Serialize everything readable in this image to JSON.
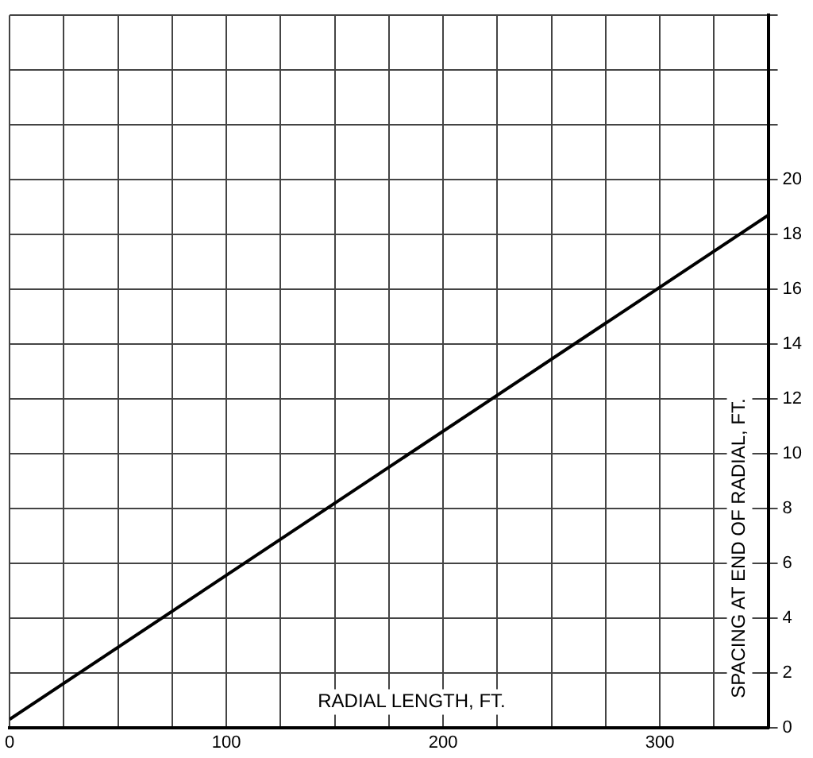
{
  "chart_data": {
    "type": "line",
    "xlabel": "RADIAL LENGTH, FT.",
    "ylabel": "SPACING AT END OF RADIAL, FT.",
    "x": [
      0,
      350
    ],
    "series": [
      {
        "color": "#000000",
        "values": [
          0.3,
          18.7
        ]
      }
    ],
    "xlim": [
      0,
      350
    ],
    "xticks": [
      0,
      {
        "value": 25,
        "label": null
      },
      {
        "value": 50,
        "label": null
      },
      {
        "value": 75,
        "label": null
      },
      100,
      {
        "value": 125,
        "label": null
      },
      {
        "value": 150,
        "label": null
      },
      {
        "value": 175,
        "label": null
      },
      200,
      {
        "value": 225,
        "label": null
      },
      {
        "value": 250,
        "label": null
      },
      {
        "value": 275,
        "label": null
      },
      300,
      {
        "value": 325,
        "label": null
      },
      {
        "value": 350,
        "label": null
      }
    ],
    "ylim": [
      0,
      26
    ],
    "yticks": [
      0,
      2,
      4,
      6,
      8,
      10,
      12,
      14,
      16,
      18,
      20,
      {
        "value": 22,
        "label": null
      },
      {
        "value": 24,
        "label": null
      },
      {
        "value": 26,
        "label": null
      }
    ],
    "grid": true,
    "marker": "none",
    "line_style": "solid",
    "legend": false
  }
}
